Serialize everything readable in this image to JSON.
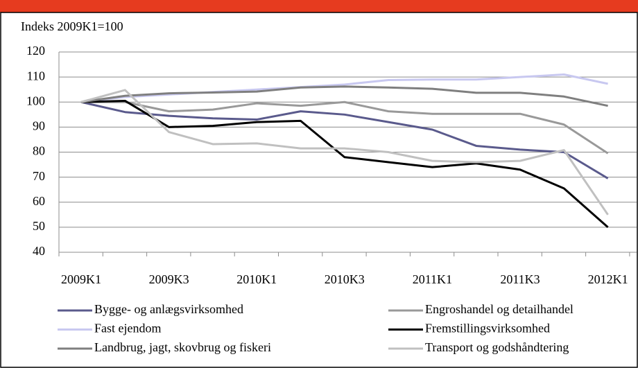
{
  "chart_data": {
    "type": "line",
    "y_axis_label": "Indeks 2009K1=100",
    "categories": [
      "2009K1",
      null,
      "2009K3",
      null,
      "2010K1",
      null,
      "2010K3",
      null,
      "2011K1",
      null,
      "2011K3",
      null,
      "2012K1"
    ],
    "series": [
      {
        "name": "Bygge- og anlægsvirksomhed",
        "color": "#5a5a8c",
        "values": [
          100,
          96,
          94.5,
          93.5,
          93,
          96.3,
          95,
          92,
          89,
          82.5,
          81,
          80,
          69.5
        ]
      },
      {
        "name": "Engroshandel og detailhandel",
        "color": "#999999",
        "values": [
          100,
          100,
          96.3,
          97,
          99.5,
          98.5,
          100,
          96.3,
          95.3,
          95.3,
          95.3,
          91,
          79.5
        ]
      },
      {
        "name": "Fast ejendom",
        "color": "#c8c8f0",
        "values": [
          100,
          102,
          103,
          104,
          105,
          106,
          107,
          108.8,
          109,
          109,
          110,
          111,
          107.3
        ]
      },
      {
        "name": "Fremstillingsvirksomhed",
        "color": "#000000",
        "values": [
          100,
          100.5,
          90,
          90.5,
          92,
          92.5,
          78,
          76,
          74,
          75.5,
          73,
          65.5,
          50
        ]
      },
      {
        "name": "Landbrug, jagt, skovbrug og fiskeri",
        "color": "#7f7f7f",
        "values": [
          100,
          102.5,
          103.5,
          103.8,
          104.2,
          105.8,
          106.2,
          105.8,
          105.3,
          103.7,
          103.7,
          102.2,
          98.5
        ]
      },
      {
        "name": "Transport og godshåndtering",
        "color": "#c0c0c0",
        "values": [
          100,
          104.8,
          88,
          83.2,
          83.5,
          81.5,
          81.5,
          80,
          76.5,
          76,
          76.5,
          80.8,
          55
        ]
      }
    ],
    "ylim": [
      40,
      120
    ],
    "yticks": [
      40,
      50,
      60,
      70,
      80,
      90,
      100,
      110,
      120
    ],
    "grid": true,
    "legend": "bottom"
  }
}
